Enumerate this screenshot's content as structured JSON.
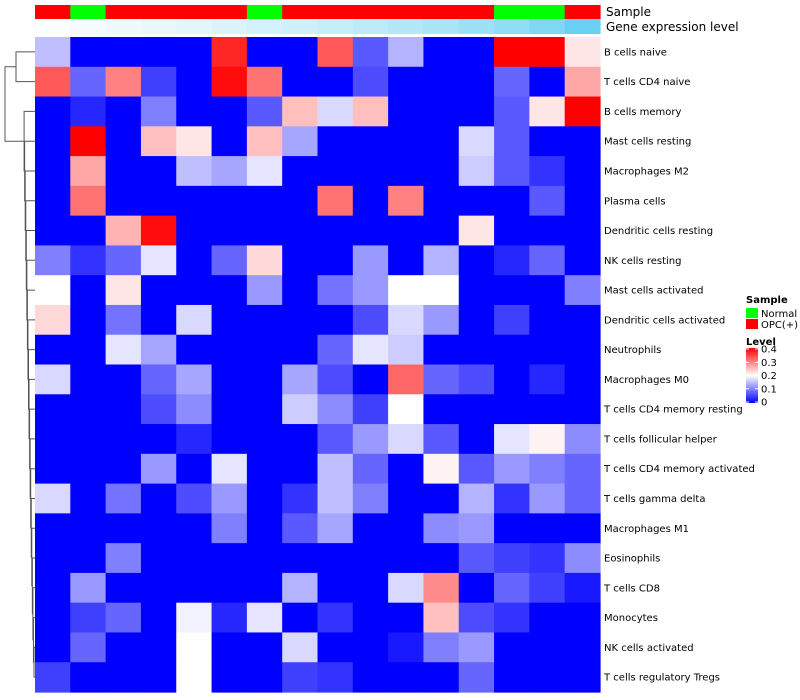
{
  "chart_data": {
    "type": "heatmap",
    "rows": [
      "B cells naive",
      "T cells CD4 naive",
      "B cells memory",
      "Mast cells resting",
      "Macrophages M2",
      "Plasma cells",
      "Dendritic cells resting",
      "NK cells resting",
      "Mast cells activated",
      "Dendritic cells activated",
      "Neutrophils",
      "Macrophages M0",
      "T cells CD4 memory resting",
      "T cells follicular helper",
      "T cells CD4 memory activated",
      "T cells gamma delta",
      "Macrophages M1",
      "Eosinophils",
      "T cells CD8",
      "Monocytes",
      "NK cells activated",
      "T cells regulatory  Tregs"
    ],
    "sample_annotation": [
      "OPC(+)",
      "Normal",
      "OPC(+)",
      "OPC(+)",
      "OPC(+)",
      "OPC(+)",
      "Normal",
      "OPC(+)",
      "OPC(+)",
      "OPC(+)",
      "OPC(+)",
      "OPC(+)",
      "OPC(+)",
      "Normal",
      "Normal",
      "OPC(+)"
    ],
    "expression_annotation": [
      0.02,
      0.05,
      0.09,
      0.12,
      0.16,
      0.2,
      0.24,
      0.28,
      0.32,
      0.37,
      0.42,
      0.48,
      0.55,
      0.62,
      0.72,
      0.85
    ],
    "values": [
      [
        0.15,
        0,
        0,
        0,
        0,
        0.37,
        0,
        0,
        0.33,
        0.07,
        0.14,
        0,
        0,
        0.4,
        0.4,
        0.22
      ],
      [
        0.33,
        0.08,
        0.3,
        0.05,
        0,
        0.39,
        0.31,
        0,
        0,
        0.06,
        0,
        0,
        0,
        0.08,
        0,
        0.27
      ],
      [
        0,
        0.03,
        0,
        0.1,
        0,
        0,
        0.07,
        0.25,
        0.17,
        0.25,
        0,
        0,
        0,
        0.07,
        0.22,
        0.4
      ],
      [
        0,
        0.4,
        0,
        0.25,
        0.22,
        0,
        0.25,
        0.13,
        0,
        0,
        0,
        0,
        0.17,
        0.07,
        0,
        0
      ],
      [
        0,
        0.27,
        0,
        0,
        0.15,
        0.13,
        0.18,
        0,
        0,
        0,
        0,
        0,
        0.16,
        0.07,
        0.04,
        0
      ],
      [
        0,
        0.31,
        0,
        0,
        0,
        0,
        0,
        0,
        0.31,
        0,
        0.3,
        0,
        0,
        0,
        0.07,
        0
      ],
      [
        0,
        0,
        0.26,
        0.39,
        0,
        0,
        0,
        0,
        0,
        0,
        0,
        0,
        0.22,
        0,
        0,
        0
      ],
      [
        0.1,
        0.04,
        0.08,
        0.18,
        0,
        0.08,
        0.23,
        0,
        0,
        0.12,
        0,
        0.14,
        0,
        0.03,
        0.08,
        0
      ],
      [
        0.2,
        0,
        0.22,
        0,
        0,
        0,
        0.12,
        0,
        0.09,
        0.12,
        0.2,
        0.2,
        0,
        0,
        0,
        0.1
      ],
      [
        0.23,
        0,
        0.09,
        0,
        0.17,
        0,
        0,
        0,
        0,
        0.06,
        0.17,
        0.12,
        0,
        0.05,
        0,
        0
      ],
      [
        0,
        0,
        0.18,
        0.13,
        0,
        0,
        0,
        0,
        0.08,
        0.18,
        0.16,
        0,
        0,
        0,
        0,
        0
      ],
      [
        0.17,
        0,
        0,
        0.08,
        0.13,
        0,
        0,
        0.13,
        0.06,
        0,
        0.32,
        0.08,
        0.06,
        0,
        0.03,
        0
      ],
      [
        0,
        0,
        0,
        0.06,
        0.11,
        0,
        0,
        0.16,
        0.11,
        0.05,
        0.2,
        0,
        0,
        0,
        0,
        0
      ],
      [
        0,
        0,
        0,
        0,
        0.03,
        0,
        0,
        0,
        0.07,
        0.12,
        0.17,
        0.07,
        0,
        0.18,
        0.21,
        0.11
      ],
      [
        0,
        0,
        0,
        0.12,
        0,
        0.18,
        0,
        0,
        0.15,
        0.08,
        0,
        0.21,
        0.07,
        0.12,
        0.1,
        0.08
      ],
      [
        0.17,
        0,
        0.09,
        0,
        0.06,
        0.12,
        0,
        0.04,
        0.15,
        0.1,
        0,
        0,
        0.14,
        0.04,
        0.12,
        0.08
      ],
      [
        0,
        0,
        0,
        0,
        0,
        0.1,
        0,
        0.07,
        0.13,
        0,
        0,
        0.11,
        0.12,
        0,
        0,
        0
      ],
      [
        0,
        0,
        0.1,
        0,
        0,
        0,
        0,
        0,
        0,
        0,
        0,
        0,
        0.07,
        0.05,
        0.04,
        0.11
      ],
      [
        0,
        0.12,
        0,
        0,
        0,
        0,
        0,
        0.14,
        0,
        0,
        0.17,
        0.29,
        0,
        0.08,
        0.05,
        0.02
      ],
      [
        0,
        0.05,
        0.08,
        0,
        0.19,
        0.03,
        0.18,
        0,
        0.04,
        0,
        0,
        0.25,
        0.06,
        0.04,
        0,
        0
      ],
      [
        0,
        0.08,
        0,
        0,
        0.2,
        0,
        0,
        0.17,
        0,
        0,
        0.02,
        0.1,
        0.12,
        0,
        0,
        0
      ],
      [
        0.05,
        0,
        0,
        0,
        0.2,
        0,
        0,
        0.05,
        0.04,
        0,
        0,
        0,
        0.08,
        0,
        0,
        0
      ]
    ],
    "annotation_labels": {
      "sample": "Sample",
      "expression": "Gene expression level"
    },
    "legend_sample": {
      "title": "Sample",
      "items": [
        {
          "label": "Normal",
          "color": "#00ff00"
        },
        {
          "label": "OPC(+)",
          "color": "#ff0000"
        }
      ]
    },
    "legend_level": {
      "title": "Level",
      "ticks": [
        0.4,
        0.3,
        0.2,
        0.1,
        0
      ],
      "tick_labels": [
        "0.4",
        "0.3",
        "0.2",
        "0.1",
        "0"
      ],
      "range": [
        0,
        0.4
      ]
    },
    "colors": {
      "low": "#0000ff",
      "mid": "#ffffff",
      "high": "#ff0000",
      "expr_low": "#ffffff",
      "expr_high": "#4dc8f0"
    }
  }
}
